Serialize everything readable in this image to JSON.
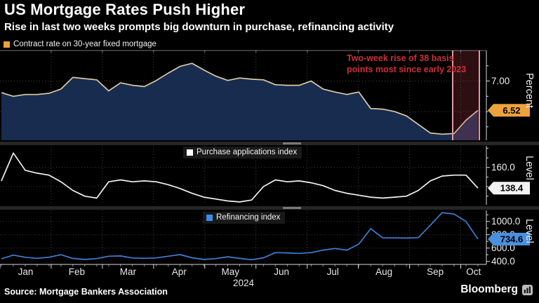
{
  "header": {
    "title": "US Mortgage Rates Push Higher",
    "subtitle": "Rise in last two weeks prompts big downturn in purchase, refinancing activity"
  },
  "annotation": {
    "line1": "Two-week rise of 38 basis",
    "line2": "points most since early 2023",
    "color": "#cd3039"
  },
  "x_axis": {
    "months": [
      "Jan",
      "Feb",
      "Mar",
      "Apr",
      "May",
      "Jun",
      "Jul",
      "Aug",
      "Sep",
      "Oct"
    ],
    "year": "2024"
  },
  "footer": {
    "source": "Source: Mortgage Bankers Association",
    "brand": "Bloomberg"
  },
  "chart_data": {
    "type": "line",
    "layout": "three stacked panels, shared weekly x-axis Jan-Oct 2024, right-side y-axes, dotted grid",
    "panels": [
      {
        "legend": "Contract rate on 30-year fixed mortgage",
        "axis_title": "Percent",
        "type": "area",
        "line_color": "#ddcba4",
        "fill_color": "#182c50",
        "swatch_color": "#eda33b",
        "badge": {
          "text": "6.52",
          "bg": "#eda33b",
          "fg": "#000000"
        },
        "ylim": [
          6.03,
          7.5
        ],
        "gridlines": [
          7.0,
          6.5
        ],
        "ticks": [
          {
            "v": 7.25
          },
          {
            "v": 7.0,
            "label": "7.00"
          },
          {
            "v": 6.75
          },
          {
            "v": 6.5
          },
          {
            "v": 6.25
          }
        ],
        "values": [
          6.81,
          6.75,
          6.78,
          6.78,
          6.8,
          6.87,
          7.06,
          7.04,
          7.02,
          6.84,
          6.97,
          6.93,
          6.91,
          7.01,
          7.13,
          7.24,
          7.29,
          7.18,
          7.08,
          7.01,
          7.05,
          7.03,
          7.02,
          6.94,
          6.93,
          6.93,
          7.0,
          6.87,
          6.82,
          6.78,
          6.82,
          6.55,
          6.54,
          6.5,
          6.43,
          6.29,
          6.15,
          6.13,
          6.14,
          6.36,
          6.52
        ],
        "highlight": {
          "from_index": 38,
          "to_index": 40,
          "fill": "rgba(205,70,80,0.22)",
          "edge": "#dc9aa2"
        }
      },
      {
        "legend": "Purchase applications index",
        "axis_title": "Level",
        "type": "line",
        "line_color": "#f2f2f2",
        "swatch_color": "#ffffff",
        "badge": {
          "text": "138.4",
          "bg": "#f2f2f2",
          "fg": "#000000"
        },
        "ylim": [
          121,
          182.5
        ],
        "gridlines": [
          160,
          140
        ],
        "ticks": [
          {
            "v": 180
          },
          {
            "v": 170
          },
          {
            "v": 160,
            "label": "160.0"
          },
          {
            "v": 150
          },
          {
            "v": 140
          },
          {
            "v": 130
          }
        ],
        "values": [
          146,
          175,
          157,
          154,
          152,
          145,
          136,
          130,
          128,
          145,
          147,
          145,
          146,
          145,
          142,
          138,
          133,
          129,
          127,
          125,
          124,
          126,
          140,
          147,
          145,
          146,
          144,
          141,
          136,
          133,
          131,
          129,
          128,
          129,
          130,
          136,
          146,
          151,
          152,
          152,
          138.4
        ]
      },
      {
        "legend": "Refinancing index",
        "axis_title": "Level",
        "type": "line",
        "line_color": "#3f7fd4",
        "swatch_color": "#3b8bf0",
        "badge": {
          "text": "734.6",
          "bg": "#4a90e0",
          "fg": "#000000"
        },
        "ylim": [
          355,
          1165
        ],
        "gridlines": [
          1000,
          800,
          600
        ],
        "ticks": [
          {
            "v": 1100
          },
          {
            "v": 1000,
            "label": "1000.0"
          },
          {
            "v": 900
          },
          {
            "v": 800,
            "label": "800.0"
          },
          {
            "v": 700
          },
          {
            "v": 600,
            "label": "600.0"
          },
          {
            "v": 500
          },
          {
            "v": 400,
            "label": "400.0"
          }
        ],
        "values": [
          440,
          495,
          462,
          446,
          463,
          500,
          445,
          430,
          442,
          478,
          482,
          452,
          446,
          453,
          478,
          502,
          455,
          430,
          442,
          470,
          445,
          425,
          454,
          532,
          528,
          520,
          532,
          570,
          594,
          570,
          660,
          890,
          754,
          753,
          751,
          757,
          942,
          1132,
          1110,
          1000,
          734.6
        ]
      }
    ]
  }
}
